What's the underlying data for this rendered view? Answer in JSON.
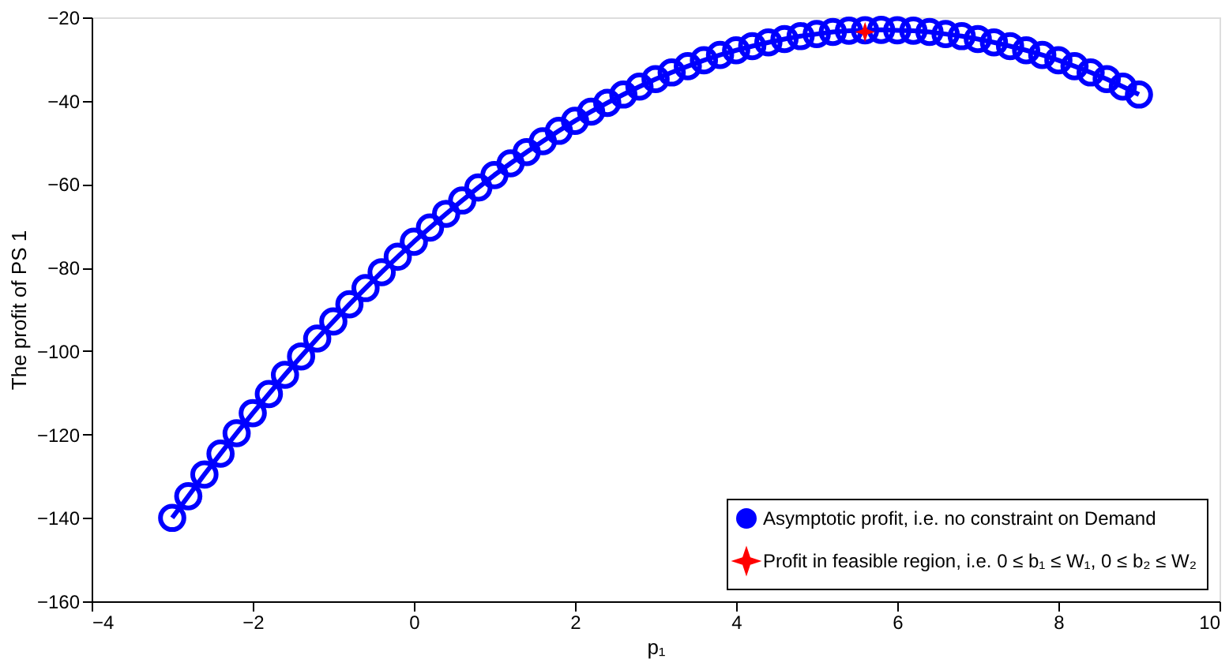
{
  "chart_data": {
    "type": "line",
    "xlabel": "p₁",
    "ylabel": "The profit of PS 1",
    "xlim": [
      -4,
      10
    ],
    "xticks": [
      -4,
      -2,
      0,
      2,
      4,
      6,
      8,
      10
    ],
    "ylim": [
      -160,
      -20
    ],
    "yticks": [
      -160,
      -140,
      -120,
      -100,
      -80,
      -60,
      -40,
      -20
    ],
    "grid": false,
    "legend": "bottom right",
    "series": [
      {
        "name": "Asymptotic profit, i.e. no constraint on Demand",
        "color": "#0000ff",
        "marker": "circle",
        "x": [
          -3.0,
          -2.8,
          -2.6,
          -2.4,
          -2.2,
          -2.0,
          -1.8,
          -1.6,
          -1.4,
          -1.2,
          -1.0,
          -0.8,
          -0.6,
          -0.4,
          -0.2,
          0.0,
          0.2,
          0.4,
          0.6,
          0.8,
          1.0,
          1.2,
          1.4,
          1.6,
          1.8,
          2.0,
          2.2,
          2.4,
          2.6,
          2.8,
          3.0,
          3.2,
          3.4,
          3.6,
          3.8,
          4.0,
          4.2,
          4.4,
          4.6,
          4.8,
          5.0,
          5.2,
          5.4,
          5.6,
          5.8,
          6.0,
          6.2,
          6.4,
          6.6,
          6.8,
          7.0,
          7.2,
          7.4,
          7.6,
          7.8,
          8.0,
          8.2,
          8.4,
          8.6,
          8.8,
          9.0
        ],
        "values": [
          -140.0,
          -134.8,
          -129.6,
          -124.6,
          -119.7,
          -114.9,
          -110.3,
          -105.7,
          -101.3,
          -97.0,
          -92.9,
          -88.8,
          -84.9,
          -81.1,
          -77.4,
          -73.8,
          -70.4,
          -67.1,
          -63.9,
          -60.8,
          -57.8,
          -55.0,
          -52.3,
          -49.7,
          -47.2,
          -44.8,
          -42.6,
          -40.5,
          -38.5,
          -36.6,
          -34.8,
          -33.2,
          -31.7,
          -30.3,
          -29.0,
          -27.9,
          -26.9,
          -26.0,
          -25.2,
          -24.5,
          -24.0,
          -23.5,
          -23.2,
          -23.1,
          -23.0,
          -23.1,
          -23.2,
          -23.5,
          -24.0,
          -24.5,
          -25.2,
          -26.0,
          -26.9,
          -27.9,
          -29.0,
          -30.3,
          -31.7,
          -33.2,
          -34.8,
          -36.6,
          -38.5
        ]
      },
      {
        "name": "Profit in feasible region, i.e. 0 ≤ b₁ ≤ W₁, 0 ≤ b₂ ≤ W₂",
        "color": "#ff0000",
        "type": "scatter",
        "marker": "star",
        "x": [
          5.6
        ],
        "values": [
          -23.5
        ]
      }
    ]
  }
}
